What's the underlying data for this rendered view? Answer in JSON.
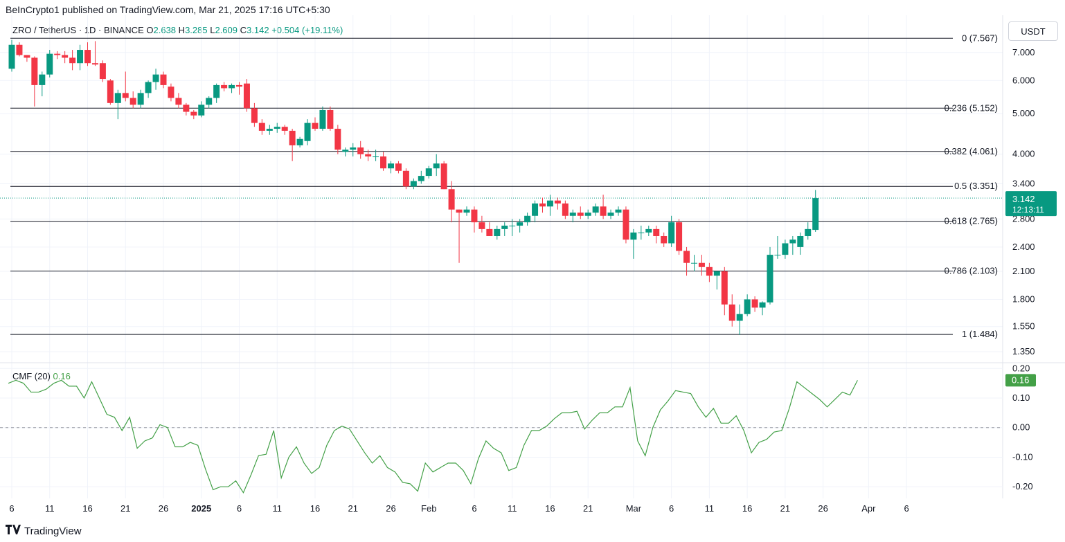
{
  "header": {
    "published": "BeInCrypto1 published on TradingView.com, Mar 21, 2025 17:16 UTC+5:30"
  },
  "legend": {
    "symbol": "ZRO / TetherUS · 1D · BINANCE",
    "o_label": "O",
    "o_value": "2.638",
    "h_label": "H",
    "h_value": "3.285",
    "l_label": "L",
    "l_value": "2.609",
    "c_label": "C",
    "c_value": "3.142",
    "change": "+0.504 (+19.11%)"
  },
  "currency_button": "USDT",
  "price_label": {
    "value": "3.142",
    "countdown": "12:13:11"
  },
  "cmf": {
    "label": "CMF (20)",
    "value": "0.16",
    "badge": "0.16"
  },
  "footer": {
    "brand": "TradingView"
  },
  "colors": {
    "up": "#089981",
    "down": "#f23645",
    "cmf_line": "#43a047",
    "fib_line": "#131722"
  },
  "chart_data": [
    {
      "type": "candlestick",
      "scale": "log",
      "ylim": [
        1.28,
        7.9
      ],
      "y_ticks": [
        "7.000",
        "6.000",
        "5.000",
        "4.000",
        "3.400",
        "2.800",
        "2.400",
        "2.100",
        "1.800",
        "1.550",
        "1.350"
      ],
      "x_ticks": [
        "6",
        "11",
        "16",
        "21",
        "26",
        "2025",
        "6",
        "11",
        "16",
        "21",
        "26",
        "Feb",
        "6",
        "11",
        "16",
        "21",
        "Mar",
        "6",
        "11",
        "16",
        "21",
        "26",
        "Apr",
        "6"
      ],
      "fib_levels": [
        {
          "label": "0 (7.567)",
          "value": 7.567
        },
        {
          "label": "0.236 (5.152)",
          "value": 5.152
        },
        {
          "label": "0.382 (4.061)",
          "value": 4.061
        },
        {
          "label": "0.5 (3.351)",
          "value": 3.351
        },
        {
          "label": "0.618 (2.765)",
          "value": 2.765
        },
        {
          "label": "0.786 (2.103)",
          "value": 2.103
        },
        {
          "label": "1 (1.484)",
          "value": 1.484
        }
      ],
      "last_price": 3.142,
      "candles": [
        [
          6.4,
          7.5,
          6.3,
          7.3
        ],
        [
          7.3,
          7.4,
          6.85,
          6.9
        ],
        [
          6.9,
          6.9,
          6.65,
          6.8
        ],
        [
          6.8,
          6.85,
          5.2,
          5.85
        ],
        [
          5.85,
          6.3,
          5.5,
          6.2
        ],
        [
          6.2,
          7.1,
          6.1,
          6.95
        ],
        [
          6.95,
          7.05,
          6.75,
          6.9
        ],
        [
          6.9,
          7.05,
          6.6,
          6.8
        ],
        [
          6.8,
          7.1,
          6.35,
          6.6
        ],
        [
          6.6,
          7.3,
          6.35,
          7.1
        ],
        [
          7.1,
          7.4,
          6.5,
          6.6
        ],
        [
          6.6,
          7.45,
          6.5,
          6.55
        ],
        [
          6.6,
          6.7,
          5.95,
          6.05
        ],
        [
          6.0,
          6.05,
          5.25,
          5.3
        ],
        [
          5.3,
          5.7,
          4.85,
          5.6
        ],
        [
          5.6,
          6.3,
          5.35,
          5.45
        ],
        [
          5.45,
          5.65,
          5.15,
          5.25
        ],
        [
          5.25,
          5.7,
          5.15,
          5.6
        ],
        [
          5.6,
          6.0,
          5.45,
          5.95
        ],
        [
          5.95,
          6.4,
          5.7,
          6.2
        ],
        [
          6.2,
          6.3,
          5.75,
          5.85
        ],
        [
          5.8,
          5.9,
          5.35,
          5.45
        ],
        [
          5.45,
          5.6,
          5.15,
          5.25
        ],
        [
          5.25,
          5.3,
          4.95,
          5.05
        ],
        [
          5.05,
          5.1,
          4.85,
          4.95
        ],
        [
          4.95,
          5.35,
          4.9,
          5.25
        ],
        [
          5.25,
          5.5,
          5.15,
          5.45
        ],
        [
          5.45,
          5.9,
          5.3,
          5.85
        ],
        [
          5.85,
          5.95,
          5.65,
          5.75
        ],
        [
          5.75,
          5.9,
          5.6,
          5.85
        ],
        [
          5.85,
          5.95,
          5.55,
          5.8
        ],
        [
          5.9,
          6.05,
          5.05,
          5.15
        ],
        [
          5.15,
          5.3,
          4.65,
          4.75
        ],
        [
          4.75,
          4.85,
          4.45,
          4.55
        ],
        [
          4.55,
          4.7,
          4.45,
          4.6
        ],
        [
          4.6,
          4.75,
          4.5,
          4.65
        ],
        [
          4.65,
          4.7,
          4.45,
          4.55
        ],
        [
          4.55,
          4.6,
          3.85,
          4.2
        ],
        [
          4.2,
          4.4,
          4.15,
          4.35
        ],
        [
          4.3,
          4.85,
          4.2,
          4.75
        ],
        [
          4.75,
          4.9,
          4.55,
          4.6
        ],
        [
          4.6,
          5.2,
          4.55,
          5.1
        ],
        [
          5.1,
          5.2,
          4.55,
          4.6
        ],
        [
          4.6,
          4.7,
          4.0,
          4.1
        ],
        [
          4.05,
          4.15,
          3.95,
          4.1
        ],
        [
          4.1,
          4.25,
          3.95,
          4.15
        ],
        [
          4.15,
          4.3,
          3.9,
          4.0
        ],
        [
          4.0,
          4.1,
          3.85,
          3.95
        ],
        [
          3.95,
          4.1,
          3.85,
          3.95
        ],
        [
          3.95,
          4.05,
          3.65,
          3.7
        ],
        [
          3.7,
          3.85,
          3.6,
          3.8
        ],
        [
          3.8,
          3.85,
          3.6,
          3.65
        ],
        [
          3.65,
          3.7,
          3.3,
          3.35
        ],
        [
          3.35,
          3.5,
          3.3,
          3.45
        ],
        [
          3.45,
          3.65,
          3.4,
          3.55
        ],
        [
          3.55,
          3.75,
          3.5,
          3.7
        ],
        [
          3.7,
          4.0,
          3.55,
          3.8
        ],
        [
          3.8,
          3.85,
          3.3,
          3.3
        ],
        [
          3.3,
          3.45,
          2.75,
          2.95
        ],
        [
          2.95,
          2.95,
          2.2,
          2.9
        ],
        [
          2.9,
          3.0,
          2.85,
          2.95
        ],
        [
          2.95,
          3.0,
          2.6,
          2.75
        ],
        [
          2.75,
          2.85,
          2.6,
          2.65
        ],
        [
          2.65,
          2.75,
          2.55,
          2.55
        ],
        [
          2.55,
          2.7,
          2.5,
          2.65
        ],
        [
          2.65,
          2.75,
          2.55,
          2.7
        ],
        [
          2.7,
          2.8,
          2.55,
          2.7
        ],
        [
          2.7,
          2.8,
          2.6,
          2.75
        ],
        [
          2.75,
          2.9,
          2.7,
          2.85
        ],
        [
          2.85,
          3.1,
          2.75,
          3.05
        ],
        [
          3.05,
          3.15,
          2.9,
          3.0
        ],
        [
          3.0,
          3.2,
          2.85,
          3.1
        ],
        [
          3.1,
          3.15,
          2.95,
          3.05
        ],
        [
          3.05,
          3.1,
          2.8,
          2.85
        ],
        [
          2.85,
          2.95,
          2.75,
          2.9
        ],
        [
          2.9,
          3.0,
          2.8,
          2.85
        ],
        [
          2.85,
          2.95,
          2.8,
          2.9
        ],
        [
          2.9,
          3.05,
          2.85,
          3.0
        ],
        [
          3.0,
          3.2,
          2.8,
          2.85
        ],
        [
          2.85,
          2.95,
          2.8,
          2.9
        ],
        [
          2.9,
          3.0,
          2.85,
          2.95
        ],
        [
          2.95,
          3.0,
          2.45,
          2.5
        ],
        [
          2.5,
          2.65,
          2.25,
          2.6
        ],
        [
          2.6,
          2.7,
          2.5,
          2.6
        ],
        [
          2.6,
          2.7,
          2.55,
          2.65
        ],
        [
          2.65,
          2.7,
          2.45,
          2.55
        ],
        [
          2.55,
          2.6,
          2.4,
          2.45
        ],
        [
          2.45,
          2.85,
          2.4,
          2.75
        ],
        [
          2.75,
          2.8,
          2.3,
          2.35
        ],
        [
          2.35,
          2.4,
          2.05,
          2.2
        ],
        [
          2.2,
          2.3,
          2.1,
          2.2
        ],
        [
          2.2,
          2.3,
          2.05,
          2.15
        ],
        [
          2.15,
          2.2,
          1.98,
          2.05
        ],
        [
          2.05,
          2.1,
          1.9,
          2.1
        ],
        [
          2.1,
          2.15,
          1.65,
          1.75
        ],
        [
          1.75,
          1.85,
          1.55,
          1.6
        ],
        [
          1.6,
          1.75,
          1.48,
          1.66
        ],
        [
          1.66,
          1.85,
          1.64,
          1.8
        ],
        [
          1.8,
          1.83,
          1.68,
          1.72
        ],
        [
          1.72,
          1.78,
          1.65,
          1.77
        ],
        [
          1.77,
          2.4,
          1.75,
          2.3
        ],
        [
          2.3,
          2.55,
          2.25,
          2.3
        ],
        [
          2.3,
          2.5,
          2.25,
          2.45
        ],
        [
          2.45,
          2.55,
          2.3,
          2.5
        ],
        [
          2.4,
          2.6,
          2.3,
          2.55
        ],
        [
          2.55,
          2.75,
          2.5,
          2.65
        ],
        [
          2.638,
          3.285,
          2.609,
          3.142
        ]
      ]
    },
    {
      "type": "line",
      "title": "CMF (20)",
      "ylim": [
        -0.23,
        0.21
      ],
      "y_ticks": [
        "0.20",
        "0.10",
        "0.00",
        "-0.10",
        "-0.20"
      ],
      "zero_line": 0.0,
      "values": [
        0.15,
        0.16,
        0.15,
        0.12,
        0.12,
        0.13,
        0.15,
        0.16,
        0.14,
        0.14,
        0.1,
        0.155,
        0.1,
        0.045,
        0.035,
        -0.01,
        0.035,
        -0.07,
        -0.045,
        -0.035,
        0.01,
        0.0,
        -0.065,
        -0.065,
        -0.05,
        -0.06,
        -0.14,
        -0.21,
        -0.2,
        -0.2,
        -0.18,
        -0.22,
        -0.16,
        -0.095,
        -0.09,
        -0.01,
        -0.17,
        -0.1,
        -0.065,
        -0.12,
        -0.155,
        -0.135,
        -0.06,
        -0.01,
        0.005,
        -0.005,
        -0.045,
        -0.085,
        -0.12,
        -0.095,
        -0.135,
        -0.15,
        -0.185,
        -0.19,
        -0.215,
        -0.12,
        -0.15,
        -0.135,
        -0.12,
        -0.12,
        -0.145,
        -0.19,
        -0.105,
        -0.045,
        -0.07,
        -0.085,
        -0.145,
        -0.135,
        -0.06,
        -0.01,
        -0.01,
        0.005,
        0.03,
        0.05,
        0.05,
        0.055,
        -0.005,
        0.025,
        0.05,
        0.05,
        0.07,
        0.07,
        0.135,
        -0.045,
        -0.095,
        0.0,
        0.06,
        0.09,
        0.125,
        0.12,
        0.115,
        0.07,
        0.035,
        0.065,
        0.015,
        0.015,
        0.04,
        -0.01,
        -0.085,
        -0.05,
        -0.04,
        -0.015,
        -0.01,
        0.065,
        0.155,
        0.135,
        0.115,
        0.095,
        0.07,
        0.095,
        0.12,
        0.11,
        0.16
      ]
    }
  ]
}
